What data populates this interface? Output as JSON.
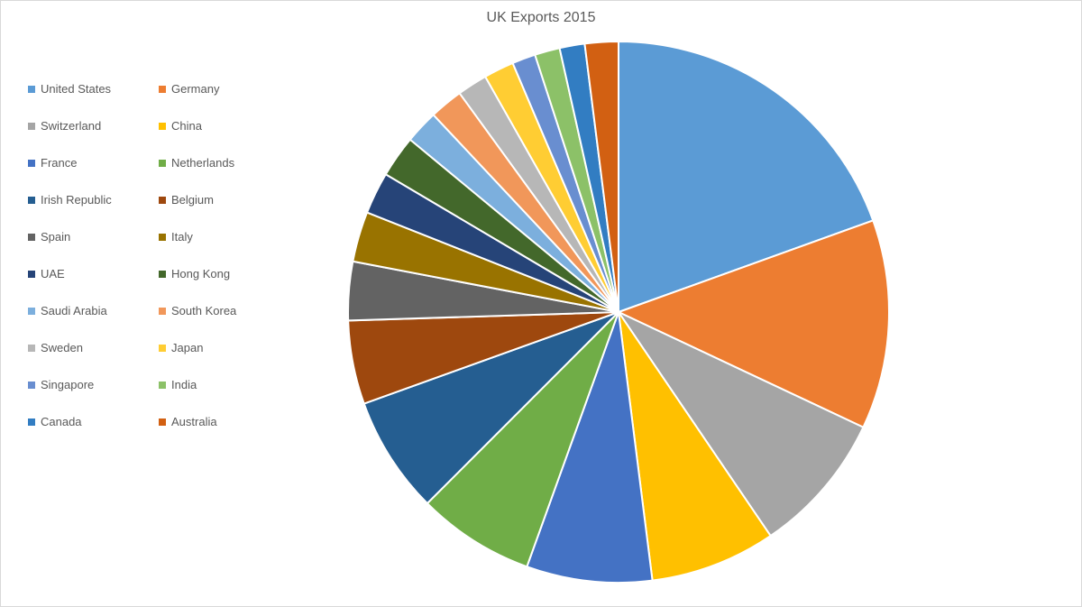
{
  "chart": {
    "type": "pie",
    "title": "UK Exports 2015",
    "title_fontsize": 16,
    "title_color": "#595959",
    "background_color": "#ffffff",
    "border_color": "#d9d9d9",
    "slice_border_color": "#ffffff",
    "slice_border_width": 2,
    "start_angle_deg": 90,
    "direction": "clockwise",
    "legend_text_color": "#595959",
    "legend_fontsize": 13,
    "series": [
      {
        "label": "United States",
        "value": 19.5,
        "color": "#5b9bd5"
      },
      {
        "label": "Germany",
        "value": 12.5,
        "color": "#ed7d31"
      },
      {
        "label": "Switzerland",
        "value": 8.5,
        "color": "#a5a5a5"
      },
      {
        "label": "China",
        "value": 7.5,
        "color": "#ffc000"
      },
      {
        "label": "France",
        "value": 7.5,
        "color": "#4472c4"
      },
      {
        "label": "Netherlands",
        "value": 7.0,
        "color": "#70ad47"
      },
      {
        "label": "Irish Republic",
        "value": 7.0,
        "color": "#255e91"
      },
      {
        "label": "Belgium",
        "value": 5.0,
        "color": "#9e480e"
      },
      {
        "label": "Spain",
        "value": 3.5,
        "color": "#636363"
      },
      {
        "label": "Italy",
        "value": 3.0,
        "color": "#997300"
      },
      {
        "label": "UAE",
        "value": 2.5,
        "color": "#264478"
      },
      {
        "label": "Hong Kong",
        "value": 2.5,
        "color": "#43682b"
      },
      {
        "label": "Saudi Arabia",
        "value": 2.0,
        "color": "#7cafdd"
      },
      {
        "label": "South Korea",
        "value": 2.0,
        "color": "#f1975a"
      },
      {
        "label": "Sweden",
        "value": 1.8,
        "color": "#b7b7b7"
      },
      {
        "label": "Japan",
        "value": 1.8,
        "color": "#ffcd33"
      },
      {
        "label": "Singapore",
        "value": 1.4,
        "color": "#698ed0"
      },
      {
        "label": "India",
        "value": 1.5,
        "color": "#8cc168"
      },
      {
        "label": "Canada",
        "value": 1.5,
        "color": "#327dc2"
      },
      {
        "label": "Australia",
        "value": 2.0,
        "color": "#d26012"
      }
    ]
  }
}
